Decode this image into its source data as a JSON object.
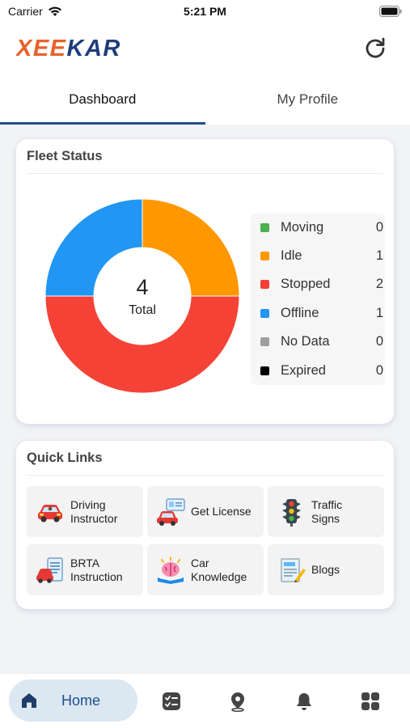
{
  "status_bar": {
    "carrier": "Carrier",
    "time": "5:21 PM"
  },
  "app": {
    "logo_text": "XEEKAR",
    "refresh_icon": "refresh-icon"
  },
  "tabs": [
    {
      "label": "Dashboard",
      "active": true
    },
    {
      "label": "My Profile",
      "active": false
    }
  ],
  "fleet_status": {
    "title": "Fleet Status",
    "total_number": "4",
    "total_label": "Total",
    "legend": [
      {
        "label": "Moving",
        "value": "0",
        "color": "#4caf50"
      },
      {
        "label": "Idle",
        "value": "1",
        "color": "#ff9800"
      },
      {
        "label": "Stopped",
        "value": "2",
        "color": "#f44336"
      },
      {
        "label": "Offline",
        "value": "1",
        "color": "#2196f3"
      },
      {
        "label": "No Data",
        "value": "0",
        "color": "#9e9e9e"
      },
      {
        "label": "Expired",
        "value": "0",
        "color": "#000000"
      }
    ]
  },
  "quick_links": {
    "title": "Quick Links",
    "items": [
      {
        "label": "Driving\nInstructor",
        "icon": "red-car-icon"
      },
      {
        "label": "Get License",
        "icon": "license-car-icon"
      },
      {
        "label": "Traffic\nSigns",
        "icon": "traffic-light-icon"
      },
      {
        "label": "BRTA\nInstruction",
        "icon": "document-car-icon"
      },
      {
        "label": "Car\nKnowledge",
        "icon": "brain-book-icon"
      },
      {
        "label": "Blogs",
        "icon": "blog-pencil-icon"
      }
    ]
  },
  "bottom_nav": {
    "home_label": "Home",
    "icons": [
      "home-icon",
      "checklist-icon",
      "location-pin-icon",
      "bell-icon",
      "grid-icon"
    ]
  },
  "colors": {
    "accent": "#1f4e8c",
    "logo_orange": "#e8622a",
    "logo_navy": "#1f3d7a",
    "background": "#f2f3f5"
  },
  "chart_data": {
    "type": "pie",
    "categories": [
      "Moving",
      "Idle",
      "Stopped",
      "Offline",
      "No Data",
      "Expired"
    ],
    "values": [
      0,
      1,
      2,
      1,
      0,
      0
    ],
    "title": "Fleet Status"
  }
}
